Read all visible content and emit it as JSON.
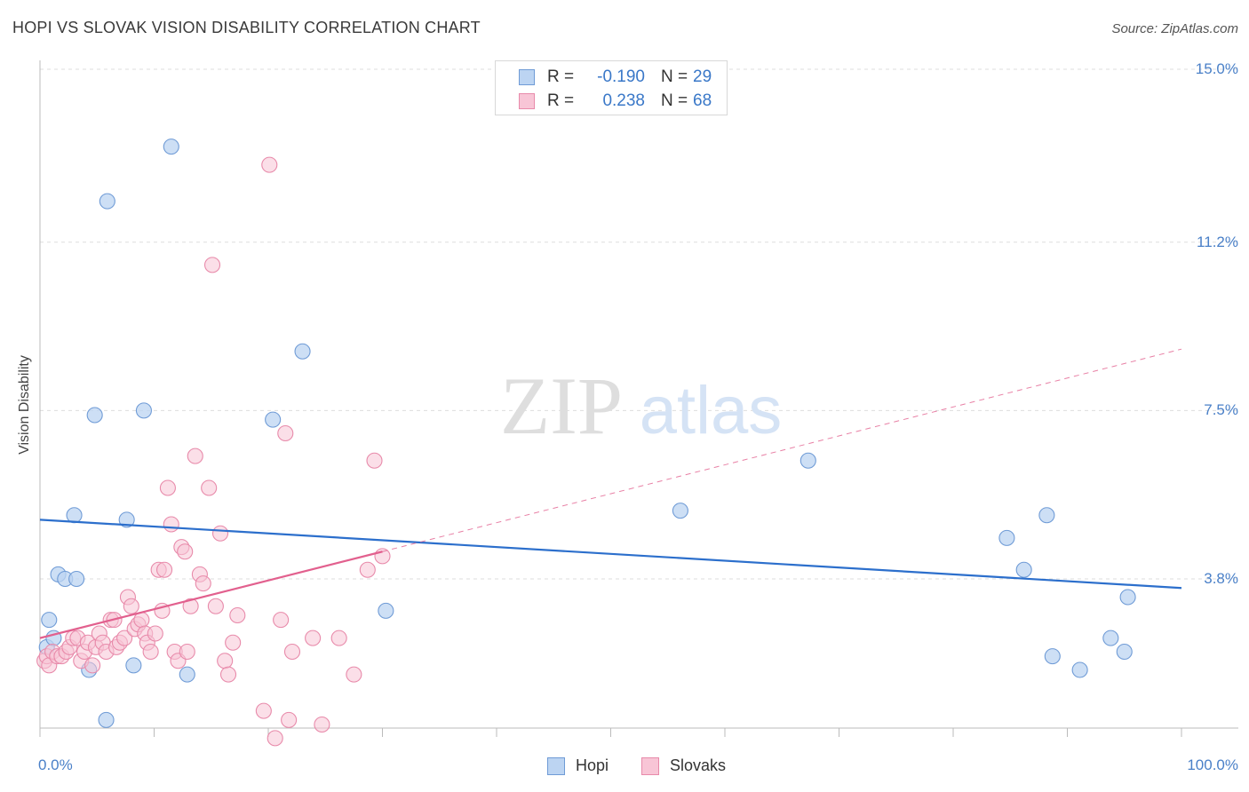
{
  "header": {
    "title": "HOPI VS SLOVAK VISION DISABILITY CORRELATION CHART",
    "source": "Source: ZipAtlas.com"
  },
  "watermark": {
    "zip": "ZIP",
    "atlas": "atlas"
  },
  "legend_top": [
    {
      "r_label": "R =",
      "r_value": "-0.190",
      "n_label": "N =",
      "n_value": "29"
    },
    {
      "r_label": "R =",
      "r_value": "0.238",
      "n_label": "N =",
      "n_value": "68"
    }
  ],
  "legend_bottom": [
    {
      "label": "Hopi"
    },
    {
      "label": "Slovaks"
    }
  ],
  "colors": {
    "hopi_fill": "#bcd4f2",
    "hopi_stroke": "#6f9bd6",
    "hopi_line": "#2c6fcc",
    "slovak_fill": "#f8c5d6",
    "slovak_stroke": "#e88aaa",
    "slovak_line": "#e2608e",
    "tick_text": "#4a80c8",
    "grid": "#dddddd"
  },
  "chart_data": {
    "type": "scatter",
    "title": "HOPI VS SLOVAK VISION DISABILITY CORRELATION CHART",
    "xlabel": "",
    "ylabel": "Vision Disability",
    "xlim": [
      0,
      100
    ],
    "ylim": [
      0,
      15.5
    ],
    "x_tick_labels": [
      {
        "value": 0,
        "label": "0.0%"
      },
      {
        "value": 100,
        "label": "100.0%"
      }
    ],
    "y_tick_labels": [
      {
        "value": 3.8,
        "label": "3.8%"
      },
      {
        "value": 7.5,
        "label": "7.5%"
      },
      {
        "value": 11.2,
        "label": "11.2%"
      },
      {
        "value": 15.0,
        "label": "15.0%"
      }
    ],
    "series": [
      {
        "name": "Hopi",
        "points": [
          [
            0.6,
            2.3
          ],
          [
            0.8,
            2.9
          ],
          [
            1.2,
            2.5
          ],
          [
            1.6,
            3.9
          ],
          [
            2.2,
            3.8
          ],
          [
            3.0,
            5.2
          ],
          [
            3.2,
            3.8
          ],
          [
            4.3,
            1.8
          ],
          [
            4.8,
            7.4
          ],
          [
            5.8,
            0.7
          ],
          [
            5.9,
            12.1
          ],
          [
            7.6,
            5.1
          ],
          [
            8.2,
            1.9
          ],
          [
            9.1,
            7.5
          ],
          [
            11.5,
            13.3
          ],
          [
            12.9,
            1.7
          ],
          [
            20.4,
            7.3
          ],
          [
            23.0,
            8.8
          ],
          [
            30.3,
            3.1
          ],
          [
            56.1,
            5.3
          ],
          [
            67.3,
            6.4
          ],
          [
            84.7,
            4.7
          ],
          [
            86.2,
            4.0
          ],
          [
            88.2,
            5.2
          ],
          [
            88.7,
            2.1
          ],
          [
            91.1,
            1.8
          ],
          [
            93.8,
            2.5
          ],
          [
            95.0,
            2.2
          ],
          [
            95.3,
            3.4
          ]
        ],
        "trend": {
          "x": [
            0,
            100
          ],
          "y": [
            5.1,
            3.6
          ]
        }
      },
      {
        "name": "Slovaks",
        "points": [
          [
            0.4,
            2.0
          ],
          [
            0.6,
            2.1
          ],
          [
            0.8,
            1.9
          ],
          [
            1.1,
            2.2
          ],
          [
            1.5,
            2.1
          ],
          [
            1.9,
            2.1
          ],
          [
            2.3,
            2.2
          ],
          [
            2.6,
            2.3
          ],
          [
            2.9,
            2.5
          ],
          [
            3.3,
            2.5
          ],
          [
            3.6,
            2.0
          ],
          [
            3.9,
            2.2
          ],
          [
            4.2,
            2.4
          ],
          [
            4.6,
            1.9
          ],
          [
            4.9,
            2.3
          ],
          [
            5.2,
            2.6
          ],
          [
            5.5,
            2.4
          ],
          [
            5.8,
            2.2
          ],
          [
            6.2,
            2.9
          ],
          [
            6.5,
            2.9
          ],
          [
            6.7,
            2.3
          ],
          [
            7.0,
            2.4
          ],
          [
            7.4,
            2.5
          ],
          [
            7.7,
            3.4
          ],
          [
            8.0,
            3.2
          ],
          [
            8.3,
            2.7
          ],
          [
            8.6,
            2.8
          ],
          [
            8.9,
            2.9
          ],
          [
            9.2,
            2.6
          ],
          [
            9.4,
            2.4
          ],
          [
            9.7,
            2.2
          ],
          [
            10.1,
            2.6
          ],
          [
            10.4,
            4.0
          ],
          [
            10.7,
            3.1
          ],
          [
            10.9,
            4.0
          ],
          [
            11.2,
            5.8
          ],
          [
            11.5,
            5.0
          ],
          [
            11.8,
            2.2
          ],
          [
            12.1,
            2.0
          ],
          [
            12.4,
            4.5
          ],
          [
            12.7,
            4.4
          ],
          [
            12.9,
            2.2
          ],
          [
            13.2,
            3.2
          ],
          [
            13.6,
            6.5
          ],
          [
            14.0,
            3.9
          ],
          [
            14.3,
            3.7
          ],
          [
            14.8,
            5.8
          ],
          [
            15.1,
            10.7
          ],
          [
            15.4,
            3.2
          ],
          [
            15.8,
            4.8
          ],
          [
            16.2,
            2.0
          ],
          [
            16.5,
            1.7
          ],
          [
            16.9,
            2.4
          ],
          [
            17.3,
            3.0
          ],
          [
            19.6,
            0.9
          ],
          [
            20.1,
            12.9
          ],
          [
            20.6,
            0.3
          ],
          [
            21.1,
            2.9
          ],
          [
            21.5,
            7.0
          ],
          [
            21.8,
            0.7
          ],
          [
            22.1,
            2.2
          ],
          [
            23.9,
            2.5
          ],
          [
            24.7,
            0.6
          ],
          [
            26.2,
            2.5
          ],
          [
            27.5,
            1.7
          ],
          [
            28.7,
            4.0
          ],
          [
            29.3,
            6.4
          ],
          [
            30.0,
            4.3
          ]
        ],
        "trend": {
          "x": [
            0,
            30
          ],
          "y": [
            2.5,
            4.4
          ]
        },
        "trend_extension": {
          "x": [
            30,
            100
          ],
          "y": [
            4.4,
            8.85
          ]
        }
      }
    ],
    "legend": [
      {
        "name": "Hopi",
        "R": "-0.190",
        "N": "29"
      },
      {
        "name": "Slovaks",
        "R": "0.238",
        "N": "68"
      }
    ],
    "grid": true,
    "legend_position": "top-center and bottom-center"
  }
}
